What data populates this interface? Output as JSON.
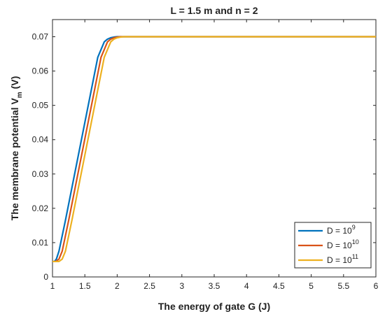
{
  "chart_data": {
    "type": "line",
    "title": "L = 1.5 m and n = 2",
    "xlabel": "The energy of gate G (J)",
    "ylabel": "The membrane potential V",
    "ylabel_sub": "m",
    "ylabel_suffix": " (V)",
    "xlim": [
      1,
      6
    ],
    "ylim": [
      0,
      0.075
    ],
    "x_ticks": [
      1,
      1.5,
      2,
      2.5,
      3,
      3.5,
      4,
      4.5,
      5,
      5.5,
      6
    ],
    "x_tick_labels": [
      "1",
      "1.5",
      "2",
      "2.5",
      "3",
      "3.5",
      "4",
      "4.5",
      "5",
      "5.5",
      "6"
    ],
    "y_ticks": [
      0,
      0.01,
      0.02,
      0.03,
      0.04,
      0.05,
      0.06,
      0.07
    ],
    "y_tick_labels": [
      "0",
      "0.01",
      "0.02",
      "0.03",
      "0.04",
      "0.05",
      "0.06",
      "0.07"
    ],
    "grid": false,
    "legend_position": "bottom-right",
    "series": [
      {
        "name": "D = 10",
        "name_sup": "9",
        "color": "#0072BD",
        "x": [
          1.0,
          1.03,
          1.06,
          1.1,
          1.2,
          1.3,
          1.4,
          1.5,
          1.6,
          1.7,
          1.8,
          1.85,
          1.9,
          1.95,
          2.0,
          2.05,
          6.0
        ],
        "y": [
          0.0045,
          0.0045,
          0.0052,
          0.0075,
          0.0165,
          0.026,
          0.0355,
          0.045,
          0.0545,
          0.064,
          0.0685,
          0.0693,
          0.0697,
          0.0699,
          0.07,
          0.07,
          0.07
        ]
      },
      {
        "name": "D = 10",
        "name_sup": "10",
        "color": "#D95319",
        "x": [
          1.0,
          1.05,
          1.1,
          1.15,
          1.25,
          1.35,
          1.45,
          1.55,
          1.65,
          1.75,
          1.85,
          1.9,
          1.95,
          2.0,
          2.05,
          2.1,
          6.0
        ],
        "y": [
          0.0045,
          0.0045,
          0.0052,
          0.0075,
          0.0165,
          0.026,
          0.0355,
          0.045,
          0.0545,
          0.064,
          0.0685,
          0.0693,
          0.0697,
          0.0699,
          0.07,
          0.07,
          0.07
        ]
      },
      {
        "name": "D = 10",
        "name_sup": "11",
        "color": "#EDB120",
        "x": [
          1.0,
          1.1,
          1.15,
          1.2,
          1.3,
          1.4,
          1.5,
          1.6,
          1.7,
          1.8,
          1.9,
          1.95,
          2.0,
          2.05,
          2.1,
          2.15,
          6.0
        ],
        "y": [
          0.0045,
          0.0045,
          0.0052,
          0.0075,
          0.0165,
          0.026,
          0.0355,
          0.045,
          0.0545,
          0.064,
          0.0685,
          0.0693,
          0.0697,
          0.0699,
          0.07,
          0.07,
          0.07
        ]
      }
    ]
  }
}
